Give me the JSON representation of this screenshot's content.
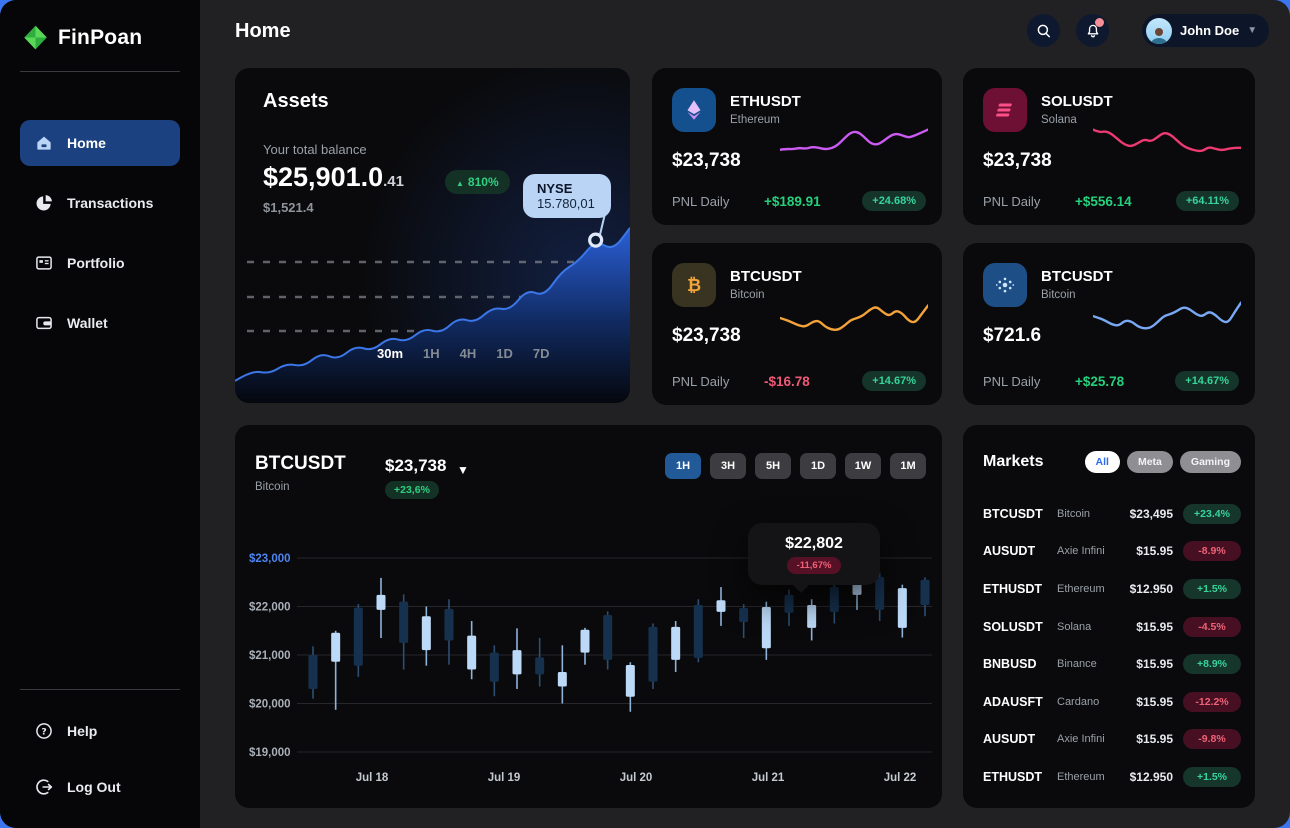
{
  "colors": {
    "backdrop_blue": "#3b76f0",
    "content_bg": "#212124",
    "card_bg": "#0a0a0c",
    "accent_blue": "#215a96",
    "active_nav_blue": "#1c4181",
    "green": "#2fd180",
    "red": "#ef5878",
    "bull_candle": "#bcd9f7",
    "bear_candle": "#16314e"
  },
  "sidebar": {
    "brand": "FinPoan",
    "nav": [
      {
        "label": "Home",
        "icon": "home-icon",
        "active": true
      },
      {
        "label": "Transactions",
        "icon": "pie-icon",
        "active": false
      },
      {
        "label": "Portfolio",
        "icon": "portfolio-icon",
        "active": false
      },
      {
        "label": "Wallet",
        "icon": "wallet-icon",
        "active": false
      }
    ],
    "footer": [
      {
        "label": "Help",
        "icon": "help-icon",
        "active": false
      },
      {
        "label": "Log Out",
        "icon": "logout-icon",
        "active": false
      }
    ]
  },
  "header": {
    "title": "Home",
    "user": {
      "name": "John Doe"
    }
  },
  "assets": {
    "title": "Assets",
    "balance_label": "Your total balance",
    "balance_main": "$25,901.0",
    "balance_fraction": ".41",
    "change_arrow": "▲",
    "change_badge": "810%",
    "sub_balance": "$1,521.4"
  },
  "mini_cards": [
    {
      "symbol": "ETHUSDT",
      "name": "Ethereum",
      "price": "$23,738",
      "pnl_label": "PNL Daily",
      "pnl_value": "+$189.91",
      "pnl_dir": "up",
      "badge": "+24.68%"
    },
    {
      "symbol": "SOLUSDT",
      "name": "Solana",
      "price": "$23,738",
      "pnl_label": "PNL Daily",
      "pnl_value": "+$556.14",
      "pnl_dir": "up",
      "badge": "+64.11%"
    },
    {
      "symbol": "BTCUSDT",
      "name": "Bitcoin",
      "price": "$23,738",
      "pnl_label": "PNL Daily",
      "pnl_value": "-$16.78",
      "pnl_dir": "down",
      "badge": "+14.67%"
    },
    {
      "symbol": "BTCUSDT",
      "name": "Bitcoin",
      "price": "$721.6",
      "pnl_label": "PNL Daily",
      "pnl_value": "+$25.78",
      "pnl_dir": "up",
      "badge": "+14.67%"
    }
  ],
  "main_chart": {
    "symbol": "BTCUSDT",
    "name": "Bitcoin",
    "price": "$23,738",
    "change": "+23,6%",
    "caret": "▼",
    "ranges": [
      "1H",
      "3H",
      "5H",
      "1D",
      "1W",
      "1M"
    ],
    "active_range": "1H"
  },
  "markets": {
    "title": "Markets",
    "tabs": [
      {
        "label": "All",
        "active": true
      },
      {
        "label": "Meta",
        "active": false
      },
      {
        "label": "Gaming",
        "active": false
      }
    ],
    "rows": [
      {
        "symbol": "BTCUSDT",
        "name": "Bitcoin",
        "price": "$23,495",
        "change": "+23.4%",
        "dir": "up"
      },
      {
        "symbol": "AUSUDT",
        "name": "Axie Infini",
        "price": "$15.95",
        "change": "-8.9%",
        "dir": "down"
      },
      {
        "symbol": "ETHUSDT",
        "name": "Ethereum",
        "price": "$12.950",
        "change": "+1.5%",
        "dir": "up"
      },
      {
        "symbol": "SOLUSDT",
        "name": "Solana",
        "price": "$15.95",
        "change": "-4.5%",
        "dir": "down"
      },
      {
        "symbol": "BNBUSD",
        "name": "Binance",
        "price": "$15.95",
        "change": "+8.9%",
        "dir": "up"
      },
      {
        "symbol": "ADAUSFT",
        "name": "Cardano",
        "price": "$15.95",
        "change": "-12.2%",
        "dir": "down"
      },
      {
        "symbol": "AUSUDT",
        "name": "Axie Infini",
        "price": "$15.95",
        "change": "-9.8%",
        "dir": "down"
      },
      {
        "symbol": "ETHUSDT",
        "name": "Ethereum",
        "price": "$12.950",
        "change": "+1.5%",
        "dir": "up"
      }
    ]
  },
  "chart_data": [
    {
      "id": "assets-balance-area",
      "type": "area",
      "title": "Assets total balance trend",
      "color": "#2e63dc",
      "grid": "dashed",
      "ranges": [
        "30m",
        "1H",
        "4H",
        "1D",
        "7D"
      ],
      "active_range": "30m",
      "values": [
        8,
        14,
        12,
        18,
        16,
        24,
        20,
        28,
        25,
        33,
        30,
        38,
        35,
        44,
        41,
        50,
        48,
        60,
        56,
        70,
        76,
        88,
        82,
        95
      ],
      "marker": {
        "index": 21,
        "label": "NYSE",
        "value": "15.780,01"
      }
    },
    {
      "id": "spark-ethusdt",
      "type": "line",
      "name": "ETHUSDT",
      "color": "#cb5bf2",
      "values": [
        38,
        40,
        39,
        42,
        40,
        44,
        42,
        39,
        41,
        48,
        62,
        74,
        76,
        66,
        52,
        48,
        55,
        66,
        72,
        68,
        63,
        68,
        74,
        80
      ]
    },
    {
      "id": "spark-solusdt",
      "type": "line",
      "name": "SOLUSDT",
      "color": "#ee3a72",
      "values": [
        80,
        74,
        77,
        70,
        58,
        48,
        45,
        52,
        60,
        55,
        64,
        74,
        70,
        58,
        46,
        40,
        36,
        35,
        44,
        40,
        37,
        40,
        42,
        42
      ]
    },
    {
      "id": "spark-btcusdt",
      "type": "line",
      "name": "BTCUSDT",
      "color": "#f3a33a",
      "values": [
        52,
        48,
        42,
        36,
        34,
        44,
        47,
        34,
        28,
        27,
        36,
        48,
        52,
        58,
        70,
        76,
        64,
        56,
        68,
        62,
        46,
        42,
        60,
        78
      ]
    },
    {
      "id": "spark-btcusdt-2",
      "type": "line",
      "name": "BTCUSDT",
      "color": "#79a9f5",
      "values": [
        56,
        52,
        46,
        38,
        36,
        47,
        45,
        34,
        30,
        32,
        43,
        56,
        60,
        66,
        75,
        71,
        60,
        55,
        66,
        59,
        46,
        42,
        64,
        84
      ]
    },
    {
      "id": "btcusdt-candles",
      "type": "candlestick",
      "symbol": "BTCUSDT",
      "ylim": [
        19000,
        23000
      ],
      "yticks": [
        "$23,000",
        "$22,000",
        "$21,000",
        "$20,000",
        "$19,000"
      ],
      "ytick_values": [
        23000,
        22000,
        21000,
        20000,
        19000
      ],
      "xticks": [
        "Jul 18",
        "Jul 19",
        "Jul 20",
        "Jul 21",
        "Jul 22"
      ],
      "ohlc": [
        [
          21000,
          21180,
          20100,
          20300
        ],
        [
          20860,
          21500,
          19870,
          21460
        ],
        [
          21975,
          22050,
          20550,
          20780
        ],
        [
          21930,
          22590,
          21350,
          22240
        ],
        [
          22100,
          22250,
          20700,
          21250
        ],
        [
          21100,
          22000,
          20780,
          21800
        ],
        [
          21950,
          22150,
          20800,
          21300
        ],
        [
          20700,
          21700,
          20500,
          21400
        ],
        [
          21050,
          21200,
          20150,
          20450
        ],
        [
          20600,
          21550,
          20300,
          21100
        ],
        [
          20950,
          21350,
          20350,
          20600
        ],
        [
          20350,
          21200,
          20000,
          20650
        ],
        [
          21050,
          21560,
          20800,
          21520
        ],
        [
          21825,
          21900,
          20700,
          20900
        ],
        [
          20140,
          20850,
          19830,
          20795
        ],
        [
          21580,
          21650,
          20300,
          20450
        ],
        [
          20900,
          21700,
          20650,
          21580
        ],
        [
          22030,
          22150,
          20850,
          20940
        ],
        [
          21890,
          22400,
          21600,
          22130
        ],
        [
          21970,
          22050,
          21350,
          21680
        ],
        [
          21140,
          22100,
          20900,
          21990
        ],
        [
          22240,
          22350,
          21600,
          21870
        ],
        [
          21560,
          22150,
          21300,
          22030
        ],
        [
          22400,
          22500,
          21650,
          21890
        ],
        [
          22240,
          23230,
          21930,
          23000
        ],
        [
          22610,
          22700,
          21700,
          21930
        ],
        [
          21560,
          22450,
          21360,
          22380
        ],
        [
          22550,
          22600,
          21800,
          22030
        ]
      ],
      "tooltip": {
        "price": "$22,802",
        "change": "-11,67%",
        "candle_index": 21
      }
    }
  ]
}
